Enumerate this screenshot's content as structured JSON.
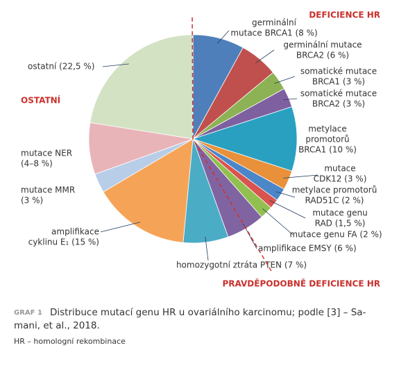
{
  "chart_data": {
    "type": "pie",
    "categories": [
      [
        "germinální",
        "mutace BRCA1 (8 %)"
      ],
      [
        "germinální mutace",
        "BRCA2 (6 %)"
      ],
      [
        "somatické mutace",
        "BRCA1 (3 %)"
      ],
      [
        "somatické mutace",
        "BRCA2 (3 %)"
      ],
      [
        "metylace",
        "promotorů",
        "BRCA1 (10 %)"
      ],
      [
        "mutace",
        "CDK12 (3 %)"
      ],
      [
        "metylace promotorů",
        "RAD51C (2 %)"
      ],
      [
        "mutace genu",
        "RAD (1,5 %)"
      ],
      [
        "mutace genu FA (2 %)"
      ],
      [
        "amplifikace EMSY (6 %)"
      ],
      [
        "homozygotní ztráta PTEN (7 %)"
      ],
      [
        "amplifikace",
        "cyklinu E₁ (15 %)"
      ],
      [
        "mutace MMR",
        "(3 %)"
      ],
      [
        "mutace NER",
        "(4–8 %)"
      ],
      [
        "ostatní (22,5 %)"
      ]
    ],
    "values": [
      8,
      6,
      3,
      3,
      10,
      3,
      2,
      1.5,
      2,
      6,
      7,
      15,
      3,
      8,
      22.5
    ],
    "colors": [
      "#4f7fba",
      "#c0504d",
      "#8db255",
      "#7e5fa0",
      "#2aa0c0",
      "#e8913a",
      "#4a86c8",
      "#d9534f",
      "#92c050",
      "#8064a2",
      "#4bacc6",
      "#f5a457",
      "#b8cde8",
      "#e8b4b8",
      "#d4e2c4"
    ],
    "annotations": [
      "DEFICIENCE HR",
      "PRAVDĚPODOBNĚ DEFICIENCE HR",
      "OSTATNÍ"
    ]
  },
  "caption": {
    "label": "GRAF 1",
    "lines": [
      "Distribuce mutací genu HR u ovariálního karcinomu; podle [3] – Sa-",
      "mani, et al., 2018."
    ],
    "note": "HR – homologní rekombinace"
  }
}
